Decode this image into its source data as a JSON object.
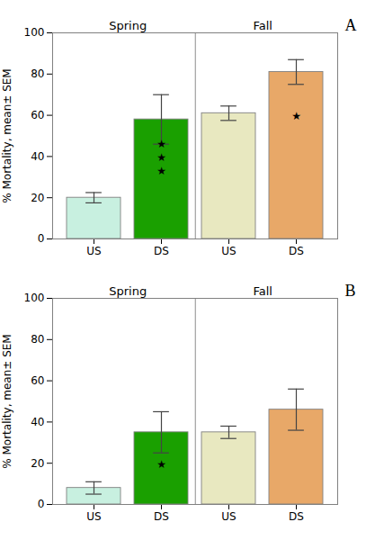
{
  "chart_data": [
    {
      "type": "bar",
      "title": "A",
      "categories": [
        "US",
        "DS",
        "US",
        "DS"
      ],
      "values": [
        20,
        58,
        61,
        81
      ],
      "errors": [
        2.5,
        12,
        3.5,
        6
      ],
      "colors": [
        "#c8f0e0",
        "#1aa000",
        "#e8e8c0",
        "#e8a868"
      ],
      "ylabel": "% Mortality, mean± SEM",
      "ylim": [
        0,
        100
      ],
      "yticks": [
        0,
        20,
        40,
        60,
        80,
        100
      ],
      "grid": false,
      "annotations": [
        {
          "text": "Spring",
          "x": [
            0,
            1
          ]
        },
        {
          "text": "Fall",
          "x": [
            2,
            3
          ]
        },
        {
          "text": "★\n★\n★",
          "x": 1,
          "y": 40
        },
        {
          "text": "★",
          "x": 3,
          "y": 60
        }
      ]
    },
    {
      "type": "bar",
      "title": "B",
      "categories": [
        "US",
        "DS",
        "US",
        "DS"
      ],
      "values": [
        8,
        35,
        35,
        46
      ],
      "errors": [
        3,
        10,
        3,
        10
      ],
      "colors": [
        "#c8f0e0",
        "#1aa000",
        "#e8e8c0",
        "#e8a868"
      ],
      "ylabel": "% Mortality, mean± SEM",
      "ylim": [
        0,
        100
      ],
      "yticks": [
        0,
        20,
        40,
        60,
        80,
        100
      ],
      "grid": false,
      "annotations": [
        {
          "text": "Spring",
          "x": [
            0,
            1
          ]
        },
        {
          "text": "Fall",
          "x": [
            2,
            3
          ]
        },
        {
          "text": "★",
          "x": 1,
          "y": 20
        }
      ]
    }
  ]
}
